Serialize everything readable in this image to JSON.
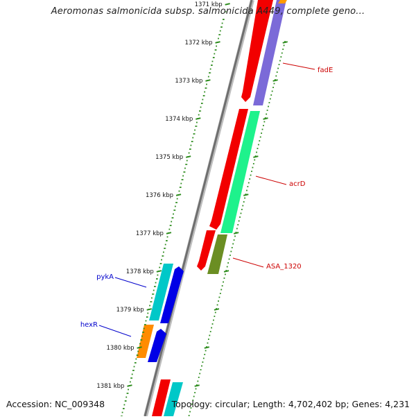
{
  "title": "Aeromonas salmonicida subsp. salmonicida A449, complete geno...",
  "footer": {
    "accession": "Accession: NC_009348",
    "info": "Topology: circular; Length: 4,702,402 bp; Genes: 4,231"
  },
  "colors": {
    "tick": "#2a8a1a",
    "label_red": "#cc0000",
    "label_blue": "#0000cc",
    "backbone": "#777777"
  },
  "ticks": [
    "1371 kbp",
    "1372 kbp",
    "1373 kbp",
    "1374 kbp",
    "1375 kbp",
    "1376 kbp",
    "1377 kbp",
    "1378 kbp",
    "1379 kbp",
    "1380 kbp",
    "1381 kbp"
  ],
  "gene_labels": [
    {
      "text": "fadE",
      "color": "red"
    },
    {
      "text": "acrD",
      "color": "red"
    },
    {
      "text": "ASA_1320",
      "color": "red"
    },
    {
      "text": "pykA",
      "color": "blue"
    },
    {
      "text": "hexR",
      "color": "blue"
    }
  ]
}
